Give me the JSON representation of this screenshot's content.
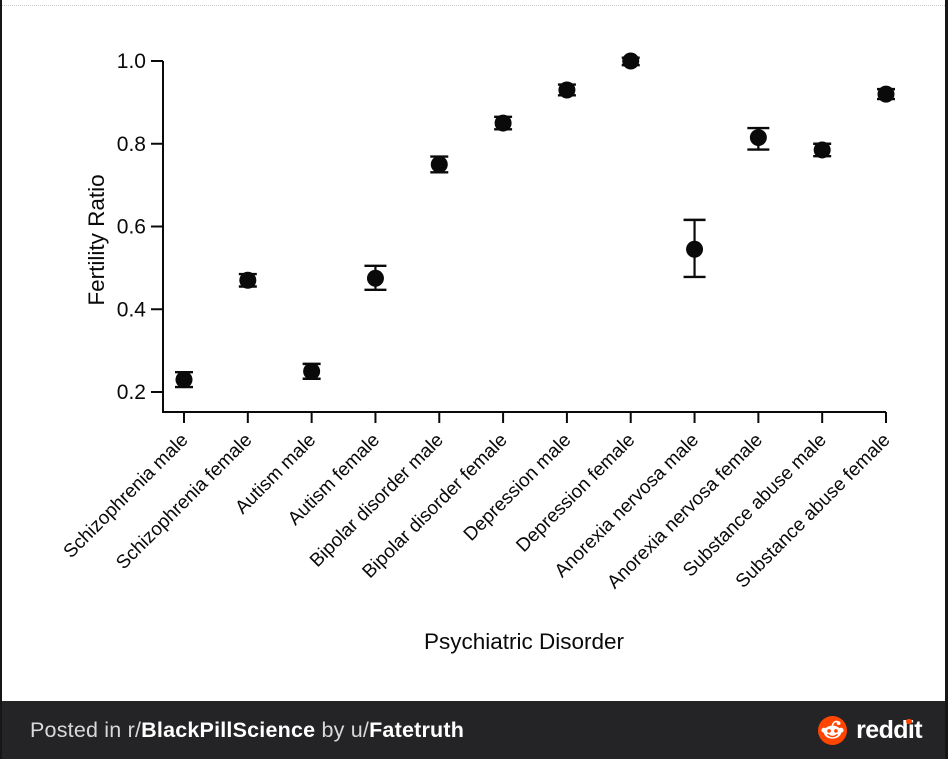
{
  "chart_data": {
    "type": "scatter",
    "title": "",
    "xlabel": "Psychiatric Disorder",
    "ylabel": "Fertility Ratio",
    "ylim": [
      0.2,
      1.0
    ],
    "yticks": [
      0.2,
      0.4,
      0.6,
      0.8,
      1.0
    ],
    "grid": false,
    "legend": false,
    "marker": "filled-circle-with-error-bars",
    "marker_color": "#000000",
    "categories": [
      "Schizophrenia male",
      "Schizophrenia female",
      "Autism male",
      "Autism female",
      "Bipolar disorder male",
      "Bipolar disorder female",
      "Depression male",
      "Depression female",
      "Anorexia nervosa male",
      "Anorexia nervosa female",
      "Substance abuse male",
      "Substance abuse female"
    ],
    "series": [
      {
        "name": "Fertility ratio",
        "values": [
          0.23,
          0.47,
          0.25,
          0.475,
          0.75,
          0.85,
          0.93,
          1.0,
          0.545,
          0.815,
          0.785,
          0.92
        ],
        "err_low": [
          0.212,
          0.455,
          0.232,
          0.447,
          0.731,
          0.835,
          0.917,
          0.99,
          0.478,
          0.786,
          0.77,
          0.908
        ],
        "err_high": [
          0.248,
          0.485,
          0.268,
          0.505,
          0.769,
          0.865,
          0.943,
          1.008,
          0.616,
          0.838,
          0.8,
          0.932
        ]
      }
    ]
  },
  "banner": {
    "posted_in": "Posted in ",
    "subreddit_prefix": "r/",
    "subreddit": "BlackPillScience",
    "by": " by ",
    "user_prefix": "u/",
    "username": "Fatetruth",
    "reddit_wordmark": "reddit"
  },
  "colors": {
    "banner_bg": "#242427",
    "reddit_orange": "#FF4500",
    "banner_text": "#d8d9da",
    "banner_text_bold": "#ffffff",
    "chart_ink": "#000000"
  }
}
